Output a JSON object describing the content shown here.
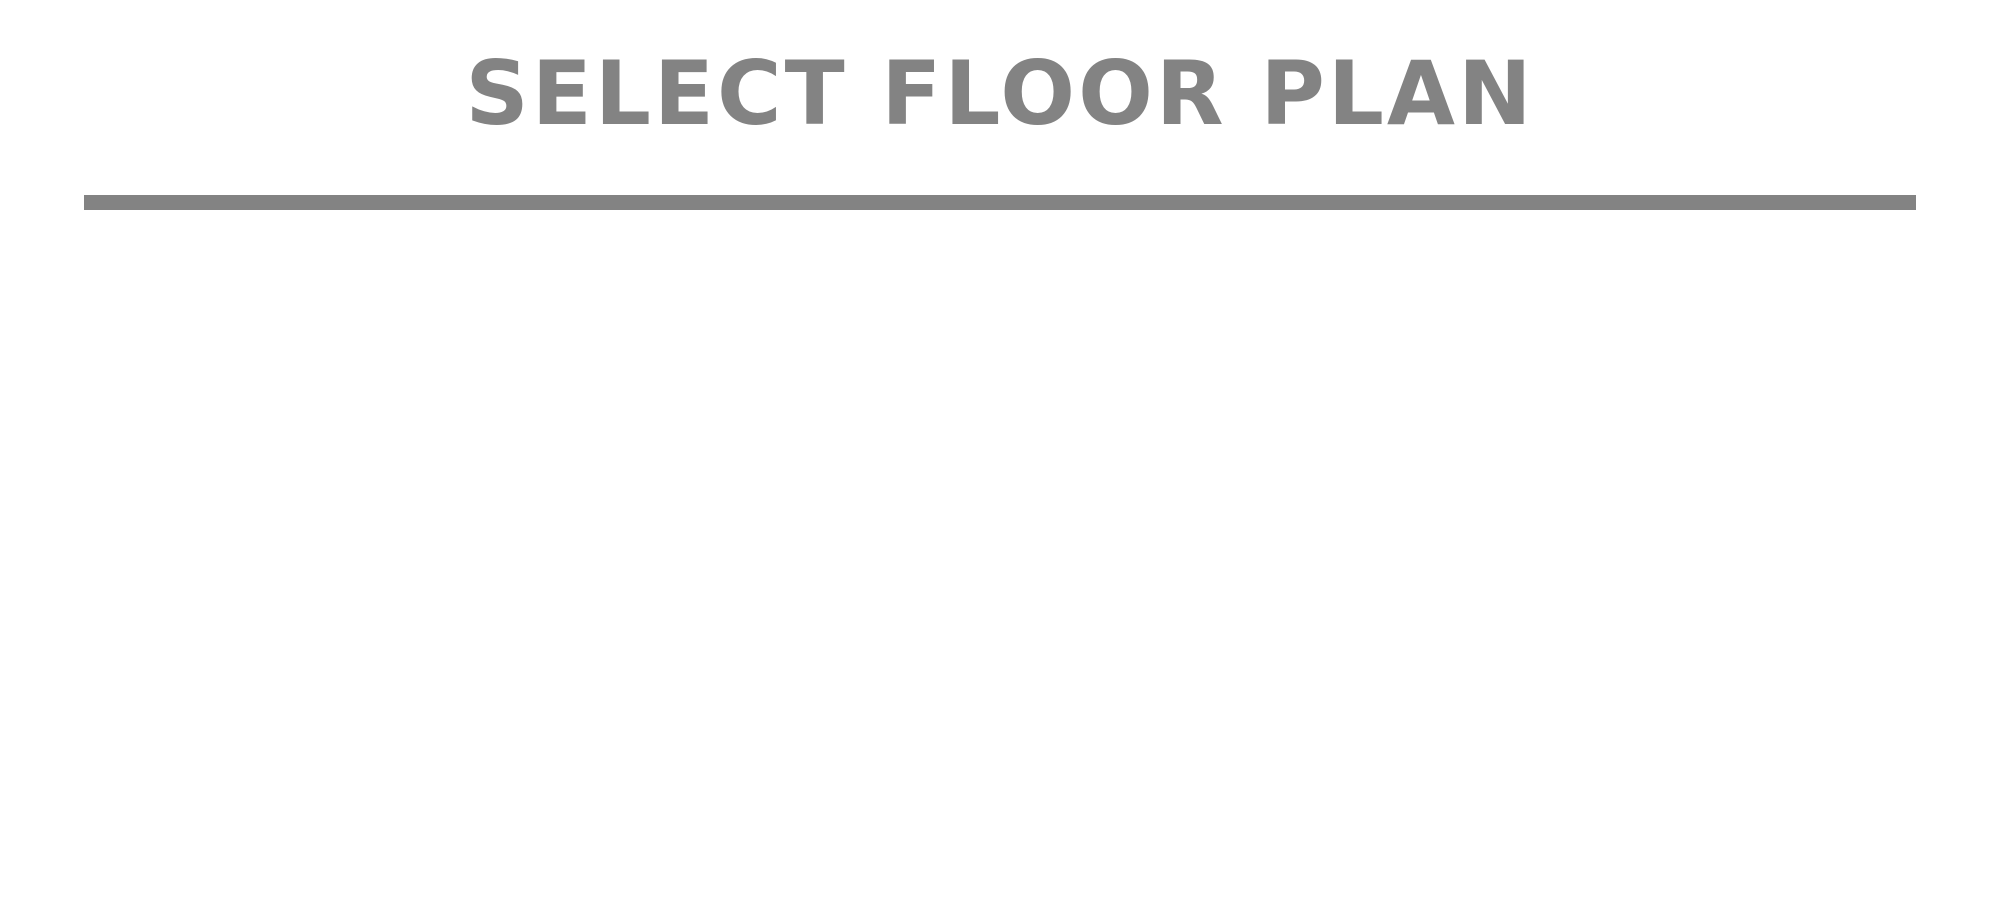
{
  "header": {
    "title": "SELECT FLOOR PLAN"
  },
  "colors": {
    "heading_text": "#838383",
    "divider": "#838383",
    "background": "#ffffff"
  }
}
